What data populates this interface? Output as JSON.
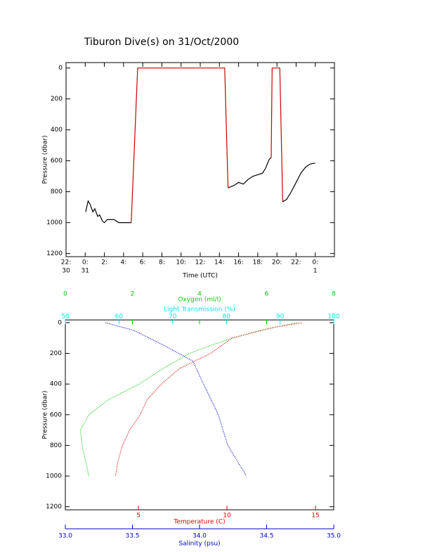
{
  "chart_data": [
    {
      "type": "line",
      "title": "Tiburon Dive(s) on 31/Oct/2000",
      "xlabel": "Time (UTC)",
      "ylabel": "Pressure (dbar)",
      "xlim": [
        -2,
        26
      ],
      "xticks": [
        {
          "value": -2,
          "label": "22:"
        },
        {
          "value": 0,
          "label": "0:"
        },
        {
          "value": 2,
          "label": "2:"
        },
        {
          "value": 4,
          "label": "4:"
        },
        {
          "value": 6,
          "label": "6:"
        },
        {
          "value": 8,
          "label": "8:"
        },
        {
          "value": 10,
          "label": "10:"
        },
        {
          "value": 12,
          "label": "12:"
        },
        {
          "value": 14,
          "label": "14:"
        },
        {
          "value": 16,
          "label": "16:"
        },
        {
          "value": 18,
          "label": "18:"
        },
        {
          "value": 20,
          "label": "20:"
        },
        {
          "value": 22,
          "label": "22:"
        },
        {
          "value": 24,
          "label": "0:"
        }
      ],
      "x_day_labels": [
        {
          "value": -2,
          "label": "30"
        },
        {
          "value": 0,
          "label": "31"
        },
        {
          "value": 24,
          "label": "1"
        }
      ],
      "ylim": [
        -35,
        1220
      ],
      "y_reversed": true,
      "yticks": [
        0,
        200,
        400,
        600,
        800,
        1000,
        1200
      ],
      "series": [
        {
          "color": "#000000",
          "x": [
            0.05,
            0.3,
            0.5,
            0.8,
            1.0,
            1.3,
            1.5,
            1.8,
            2.0,
            2.3,
            3.0,
            3.5,
            4.8,
            null,
            14.9,
            15.5,
            16,
            16.5,
            17,
            17.5,
            18,
            18.5,
            18.8,
            19.2,
            19.4,
            null,
            20.6,
            21,
            21.5,
            22,
            22.5,
            23,
            23.5,
            24
          ],
          "values": [
            930,
            860,
            880,
            930,
            910,
            960,
            950,
            990,
            1000,
            980,
            980,
            1000,
            1000,
            null,
            775,
            760,
            740,
            750,
            720,
            700,
            690,
            680,
            650,
            590,
            580,
            null,
            865,
            850,
            800,
            740,
            680,
            640,
            620,
            615
          ]
        },
        {
          "color": "#cc0000",
          "x": [
            4.8,
            5.47,
            14.55,
            14.9,
            null,
            19.4,
            19.5,
            20.3,
            20.6
          ],
          "values": [
            1000,
            0,
            0,
            775,
            null,
            580,
            0,
            0,
            865
          ]
        }
      ]
    },
    {
      "type": "line",
      "ylabel": "Pressure (dbar)",
      "ylim": [
        -18,
        1220
      ],
      "y_reversed": true,
      "yticks": [
        0,
        200,
        400,
        600,
        800,
        1000,
        1200
      ],
      "x_axes": [
        {
          "label": "Oxygen (ml/l)",
          "color": "#00cc00",
          "position": "top",
          "xlim": [
            0,
            8
          ],
          "xticks": [
            0,
            2,
            4,
            6,
            8
          ]
        },
        {
          "label": "Light Transmission (%)",
          "color": "#00e5ee",
          "position": "top2",
          "xlim": [
            50,
            100
          ],
          "xticks": [
            50,
            60,
            70,
            80,
            90,
            100
          ]
        },
        {
          "label": "Temperature (C)",
          "color": "#dd0000",
          "position": "bottom",
          "xlim": [
            0.87,
            16.03
          ],
          "xticks": [
            5,
            10,
            15
          ]
        },
        {
          "label": "Salinity (psu)",
          "color": "#0000cc",
          "position": "bottom2",
          "xlim": [
            33.0,
            35.0
          ],
          "xticks": [
            {
              "value": 33.0,
              "label": "33.0"
            },
            {
              "value": 33.5,
              "label": "33.5"
            },
            {
              "value": 34.0,
              "label": "34.0"
            },
            {
              "value": 34.5,
              "label": "34.5"
            },
            {
              "value": 35.0,
              "label": "35.0"
            }
          ]
        }
      ],
      "series": [
        {
          "color": "#00cc00",
          "axis": 0,
          "x": [
            6.9,
            5.8,
            5.0,
            4.3,
            3.7,
            2.9,
            2.2,
            1.3,
            0.7,
            0.45,
            0.5,
            0.6,
            0.7
          ],
          "values": [
            0,
            50,
            100,
            150,
            200,
            300,
            400,
            500,
            600,
            700,
            800,
            900,
            1000
          ]
        },
        {
          "color": "#0000cc",
          "axis": 3,
          "x": [
            33.3,
            33.51,
            33.74,
            33.95,
            34.03,
            34.14,
            34.21,
            34.35
          ],
          "values": [
            0,
            50,
            150,
            250,
            400,
            600,
            800,
            1000
          ]
        },
        {
          "color": "#dd0000",
          "axis": 2,
          "x": [
            14.24,
            12.66,
            10.27,
            9.08,
            7.3,
            6.3,
            5.5,
            5.1,
            4.5,
            4.1,
            3.85,
            3.7
          ],
          "values": [
            0,
            30,
            100,
            200,
            300,
            400,
            500,
            600,
            700,
            800,
            900,
            1000
          ]
        }
      ]
    }
  ]
}
